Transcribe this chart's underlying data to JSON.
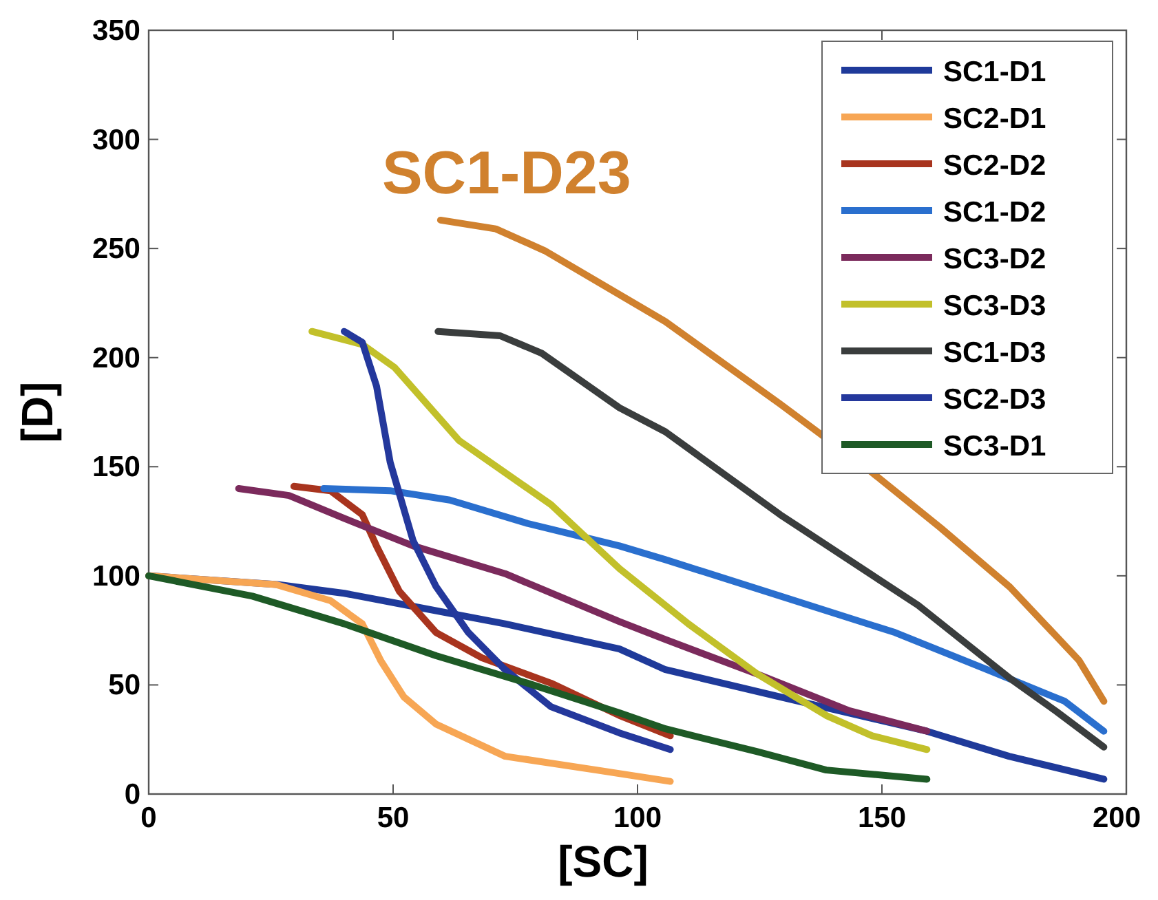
{
  "chart_data": {
    "type": "line",
    "xlabel": "[SC]",
    "ylabel": "[D]",
    "xlim": [
      0,
      200
    ],
    "ylim": [
      0,
      350
    ],
    "xticks": [
      0,
      50,
      100,
      150,
      200
    ],
    "yticks": [
      0,
      50,
      100,
      150,
      200,
      250,
      300,
      350
    ],
    "grid": false,
    "legend": "top right",
    "marker": "none",
    "line_style": "solid",
    "annotations": [
      "SC1-D23"
    ],
    "series": [
      {
        "name": "SC1-D1",
        "color": "#1f3a9a",
        "x": [
          0,
          26.3,
          40,
          54.1,
          72.9,
          96.3,
          105.7,
          129.2,
          159.2,
          176,
          195.4
        ],
        "values": [
          100,
          96,
          92,
          86,
          78,
          66.5,
          57,
          44.5,
          28.8,
          17.3,
          6.8
        ]
      },
      {
        "name": "SC2-D1",
        "color": "#f7a654",
        "x": [
          0,
          26,
          37.2,
          43.7,
          47.5,
          52.2,
          58.8,
          72.9,
          91.6,
          106.7
        ],
        "values": [
          100,
          96,
          88.6,
          78,
          61,
          44.5,
          32,
          17.3,
          11,
          5.8
        ]
      },
      {
        "name": "SC2-D2",
        "color": "#a8341e",
        "x": [
          29.7,
          37.2,
          43.7,
          46.6,
          51.3,
          58.8,
          68.2,
          82.3,
          96.3,
          106.7
        ],
        "values": [
          141,
          139,
          128,
          113.7,
          92.8,
          74,
          62.4,
          50.8,
          36,
          26.7
        ]
      },
      {
        "name": "SC1-D2",
        "color": "#2a6fce",
        "x": [
          35.8,
          49.4,
          61.6,
          77.5,
          96.3,
          105.7,
          129.2,
          152.7,
          171.5,
          187.4,
          195.4
        ],
        "values": [
          140,
          139,
          134.7,
          124,
          113.7,
          107.4,
          90.7,
          74,
          57,
          42.5,
          28.8
        ]
      },
      {
        "name": "SC3-D2",
        "color": "#7b2a5c",
        "x": [
          18.4,
          28.7,
          40,
          54.1,
          72.9,
          96.3,
          105.7,
          124.5,
          143.3,
          159.2
        ],
        "values": [
          140,
          136.8,
          126.3,
          113.7,
          101,
          79,
          70.8,
          55,
          38.2,
          28.8
        ]
      },
      {
        "name": "SC3-D3",
        "color": "#c2c02a",
        "x": [
          33.4,
          43.7,
          50.3,
          63.5,
          82.3,
          96.3,
          110.4,
          124.5,
          138.6,
          148,
          159.2
        ],
        "values": [
          212,
          206,
          195.5,
          162,
          132.6,
          103.3,
          78,
          55,
          36,
          26.7,
          20.4
        ]
      },
      {
        "name": "SC1-D3",
        "color": "#3a3d3d",
        "x": [
          59.2,
          71.9,
          80.4,
          96.3,
          105.7,
          129.2,
          157.4,
          176.2,
          185.6,
          195.4
        ],
        "values": [
          212,
          210,
          202,
          177,
          166,
          128,
          86.5,
          53,
          38,
          21.5
        ]
      },
      {
        "name": "SC2-D3",
        "color": "#24389c",
        "x": [
          40,
          43.7,
          46.6,
          49.4,
          54.1,
          58.8,
          65.4,
          72.9,
          82.3,
          96.3,
          106.7
        ],
        "values": [
          212,
          207,
          187,
          152,
          116,
          95,
          74,
          57,
          40,
          28,
          20.4
        ]
      },
      {
        "name": "SC3-D1",
        "color": "#1e5a26",
        "x": [
          0,
          21.2,
          40,
          58.8,
          77.5,
          96.3,
          105.7,
          124.5,
          138.6,
          159.2
        ],
        "values": [
          100,
          90.7,
          78,
          63.4,
          50.8,
          37.2,
          29.9,
          19.4,
          11,
          6.8
        ]
      },
      {
        "color": "#d0812e",
        "x": [
          59.7,
          71,
          81,
          105.7,
          129.2,
          148,
          162,
          176.2,
          190.3,
          195.4
        ],
        "values": [
          263,
          259,
          249,
          216.5,
          178.7,
          147.3,
          122,
          94.8,
          61.3,
          42.5
        ]
      }
    ]
  }
}
